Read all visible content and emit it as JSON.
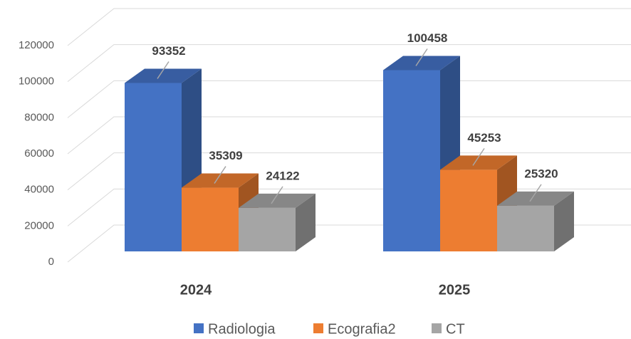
{
  "chart_data": {
    "type": "bar3d",
    "categories": [
      "2024",
      "2025"
    ],
    "series": [
      {
        "name": "Radiologia",
        "color": "#4472c4",
        "values": [
          93352,
          100458
        ]
      },
      {
        "name": "Ecografia2",
        "color": "#ed7d31",
        "values": [
          35309,
          45253
        ]
      },
      {
        "name": "CT",
        "color": "#a5a5a5",
        "values": [
          24122,
          25320
        ]
      }
    ],
    "ylim": [
      0,
      120000
    ],
    "yticks": [
      0,
      20000,
      40000,
      60000,
      80000,
      100000,
      120000
    ],
    "grid": true,
    "legend": "bottom"
  }
}
